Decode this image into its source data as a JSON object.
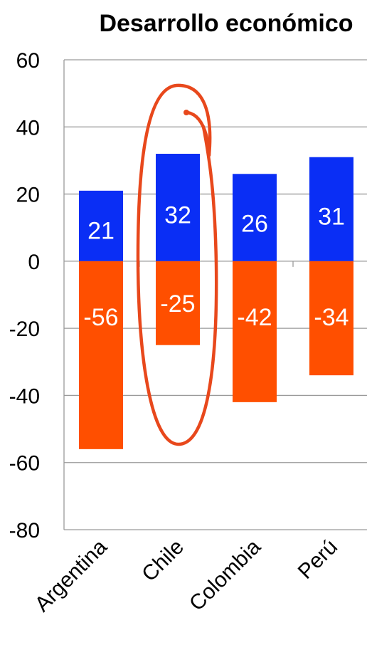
{
  "chart_data": {
    "type": "bar",
    "title": "Desarrollo económico",
    "categories": [
      "Argentina",
      "Chile",
      "Colombia",
      "Perú"
    ],
    "series": [
      {
        "values": [
          21,
          32,
          26,
          31
        ],
        "color": "#0a2ef5"
      },
      {
        "values": [
          -56,
          -25,
          -42,
          -34
        ],
        "color": "#ff4f00"
      }
    ],
    "data_labels": [
      [
        "21",
        "32",
        "26",
        "31"
      ],
      [
        "-56",
        "-25",
        "-42",
        "-34"
      ]
    ],
    "y_ticks": [
      "60",
      "40",
      "20",
      "0",
      "-20",
      "-40",
      "-60",
      "-80"
    ],
    "ylim": [
      -80,
      60
    ],
    "grid": true,
    "stacked": true,
    "highlight": {
      "category": "Chile",
      "shape": "ellipse",
      "color": "#e8481c"
    }
  }
}
